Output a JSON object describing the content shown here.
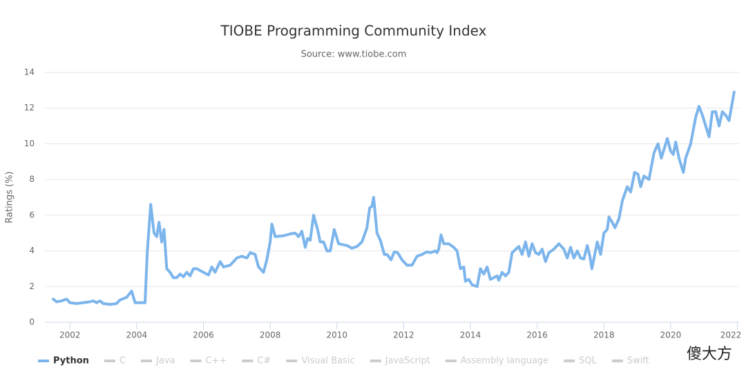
{
  "chart_data": {
    "type": "line",
    "title": "TIOBE Programming Community Index",
    "subtitle": "Source: www.tiobe.com",
    "y_label": "Ratings (%)",
    "xlim": [
      2001.25,
      2022.05
    ],
    "xticks": [
      2002,
      2004,
      2006,
      2008,
      2010,
      2012,
      2014,
      2016,
      2018,
      2020,
      2022
    ],
    "ylim": [
      0,
      14
    ],
    "yticks": [
      0,
      2,
      4,
      6,
      8,
      10,
      12,
      14
    ],
    "grid": true,
    "x": [
      2001.5,
      2001.6,
      2001.75,
      2001.9,
      2002.0,
      2002.2,
      2002.4,
      2002.6,
      2002.7,
      2002.8,
      2002.9,
      2003.0,
      2003.2,
      2003.4,
      2003.5,
      2003.7,
      2003.85,
      2003.95,
      2004.1,
      2004.25,
      2004.32,
      2004.42,
      2004.52,
      2004.6,
      2004.67,
      2004.75,
      2004.82,
      2004.9,
      2005.0,
      2005.1,
      2005.2,
      2005.3,
      2005.4,
      2005.5,
      2005.6,
      2005.7,
      2005.8,
      2006.0,
      2006.15,
      2006.25,
      2006.35,
      2006.5,
      2006.6,
      2006.8,
      2007.0,
      2007.15,
      2007.3,
      2007.4,
      2007.55,
      2007.65,
      2007.8,
      2007.9,
      2008.0,
      2008.05,
      2008.15,
      2008.4,
      2008.6,
      2008.75,
      2008.85,
      2008.95,
      2009.05,
      2009.12,
      2009.2,
      2009.3,
      2009.42,
      2009.5,
      2009.6,
      2009.7,
      2009.8,
      2009.92,
      2010.05,
      2010.3,
      2010.45,
      2010.6,
      2010.75,
      2010.9,
      2010.98,
      2011.05,
      2011.1,
      2011.2,
      2011.3,
      2011.42,
      2011.5,
      2011.62,
      2011.72,
      2011.82,
      2011.95,
      2012.1,
      2012.25,
      2012.4,
      2012.55,
      2012.7,
      2012.8,
      2012.95,
      2013.0,
      2013.05,
      2013.12,
      2013.2,
      2013.35,
      2013.5,
      2013.6,
      2013.7,
      2013.8,
      2013.85,
      2013.95,
      2014.05,
      2014.2,
      2014.3,
      2014.4,
      2014.5,
      2014.6,
      2014.7,
      2014.8,
      2014.85,
      2014.95,
      2015.05,
      2015.15,
      2015.25,
      2015.45,
      2015.55,
      2015.65,
      2015.75,
      2015.85,
      2015.95,
      2016.05,
      2016.15,
      2016.25,
      2016.35,
      2016.5,
      2016.65,
      2016.8,
      2016.9,
      2017.0,
      2017.1,
      2017.2,
      2017.3,
      2017.4,
      2017.5,
      2017.58,
      2017.64,
      2017.8,
      2017.9,
      2018.0,
      2018.1,
      2018.15,
      2018.25,
      2018.33,
      2018.45,
      2018.55,
      2018.7,
      2018.8,
      2018.92,
      2019.02,
      2019.1,
      2019.2,
      2019.35,
      2019.5,
      2019.62,
      2019.72,
      2019.9,
      2020.0,
      2020.08,
      2020.15,
      2020.25,
      2020.38,
      2020.45,
      2020.6,
      2020.75,
      2020.85,
      2020.95,
      2021.15,
      2021.25,
      2021.35,
      2021.45,
      2021.55,
      2021.65,
      2021.75,
      2021.9
    ],
    "series": [
      {
        "name": "Python",
        "color": "#7cb5ec",
        "visible": true,
        "values": [
          1.3,
          1.15,
          1.2,
          1.3,
          1.1,
          1.05,
          1.1,
          1.15,
          1.2,
          1.1,
          1.2,
          1.05,
          1.0,
          1.05,
          1.25,
          1.4,
          1.75,
          1.1,
          1.1,
          1.1,
          4.0,
          6.6,
          5.0,
          4.8,
          5.6,
          4.5,
          5.2,
          3.0,
          2.8,
          2.5,
          2.5,
          2.7,
          2.55,
          2.8,
          2.6,
          3.0,
          3.0,
          2.8,
          2.65,
          3.1,
          2.8,
          3.4,
          3.1,
          3.2,
          3.6,
          3.7,
          3.6,
          3.9,
          3.8,
          3.1,
          2.8,
          3.5,
          4.5,
          5.5,
          4.8,
          4.85,
          4.95,
          5.0,
          4.8,
          5.1,
          4.2,
          4.7,
          4.6,
          6.0,
          5.2,
          4.5,
          4.5,
          4.0,
          4.0,
          5.2,
          4.4,
          4.3,
          4.15,
          4.25,
          4.5,
          5.3,
          6.4,
          6.5,
          7.0,
          5.0,
          4.6,
          3.8,
          3.8,
          3.5,
          3.95,
          3.9,
          3.5,
          3.2,
          3.2,
          3.7,
          3.8,
          3.95,
          3.9,
          4.0,
          3.9,
          4.1,
          4.9,
          4.4,
          4.4,
          4.2,
          4.0,
          3.0,
          3.1,
          2.3,
          2.4,
          2.1,
          2.0,
          3.0,
          2.7,
          3.1,
          2.4,
          2.5,
          2.6,
          2.35,
          2.8,
          2.6,
          2.8,
          3.9,
          4.25,
          3.8,
          4.5,
          3.7,
          4.4,
          3.9,
          3.8,
          4.1,
          3.4,
          3.9,
          4.1,
          4.4,
          4.1,
          3.6,
          4.2,
          3.6,
          4.0,
          3.6,
          3.55,
          4.3,
          3.7,
          3.0,
          4.5,
          3.8,
          5.0,
          5.2,
          5.9,
          5.6,
          5.3,
          5.8,
          6.8,
          7.6,
          7.3,
          8.4,
          8.3,
          7.6,
          8.2,
          8.0,
          9.5,
          10.0,
          9.2,
          10.3,
          9.6,
          9.4,
          10.1,
          9.2,
          8.4,
          9.2,
          10.0,
          11.5,
          12.1,
          11.6,
          10.4,
          11.8,
          11.8,
          11.0,
          11.8,
          11.6,
          11.3,
          12.9
        ]
      },
      {
        "name": "C",
        "color": "#cccccc",
        "visible": false
      },
      {
        "name": "Java",
        "color": "#cccccc",
        "visible": false
      },
      {
        "name": "C++",
        "color": "#cccccc",
        "visible": false
      },
      {
        "name": "C#",
        "color": "#cccccc",
        "visible": false
      },
      {
        "name": "Visual Basic",
        "color": "#cccccc",
        "visible": false
      },
      {
        "name": "JavaScript",
        "color": "#cccccc",
        "visible": false
      },
      {
        "name": "Assembly language",
        "color": "#cccccc",
        "visible": false
      },
      {
        "name": "SQL",
        "color": "#cccccc",
        "visible": false
      },
      {
        "name": "Swift",
        "color": "#cccccc",
        "visible": false
      }
    ]
  },
  "watermark": "傻大方"
}
